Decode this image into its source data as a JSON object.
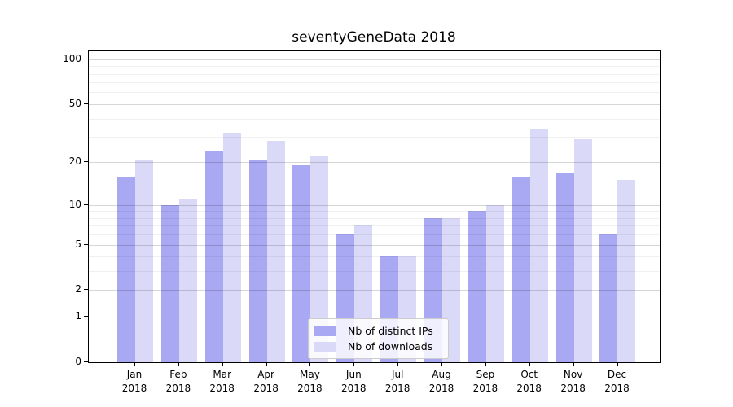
{
  "title": "seventyGeneData 2018",
  "chart_data": {
    "type": "bar",
    "title": "seventyGeneData 2018",
    "categories": [
      "Jan 2018",
      "Feb 2018",
      "Mar 2018",
      "Apr 2018",
      "May 2018",
      "Jun 2018",
      "Jul 2018",
      "Aug 2018",
      "Sep 2018",
      "Oct 2018",
      "Nov 2018",
      "Dec 2018"
    ],
    "series": [
      {
        "name": "Nb of distinct IPs",
        "color": "#a8a8f3",
        "values": [
          16,
          10,
          24,
          21,
          19,
          6,
          4,
          8,
          9,
          16,
          17,
          6
        ]
      },
      {
        "name": "Nb of downloads",
        "color": "#dadaf8",
        "values": [
          21,
          11,
          32,
          28,
          22,
          7,
          4,
          8,
          10,
          34,
          29,
          15
        ]
      }
    ],
    "yscale": "log1p",
    "yticks": [
      100,
      50,
      20,
      10,
      5,
      2,
      1,
      0
    ],
    "yticks_minor": [
      3,
      4,
      6,
      7,
      8,
      9,
      30,
      40,
      60,
      70,
      80,
      90
    ],
    "ylim": [
      0,
      113
    ],
    "xlabel": "",
    "ylabel": "",
    "grid": "horizontal",
    "legend_position": "inside-bottom-center"
  }
}
